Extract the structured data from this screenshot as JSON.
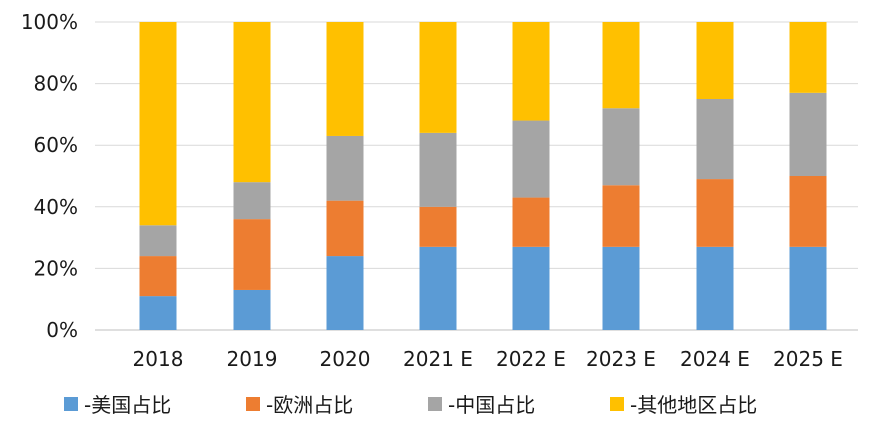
{
  "chart_data": {
    "type": "bar",
    "stacked": true,
    "categories": [
      "2018",
      "2019",
      "2020",
      "2021 E",
      "2022 E",
      "2023 E",
      "2024 E",
      "2025 E"
    ],
    "series": [
      {
        "name": "-美国占比",
        "color": "#5B9BD5",
        "values": [
          11,
          13,
          24,
          27,
          27,
          27,
          27,
          27
        ]
      },
      {
        "name": "-欧洲占比",
        "color": "#ED7D31",
        "values": [
          13,
          23,
          18,
          13,
          16,
          20,
          22,
          23
        ]
      },
      {
        "name": "-中国占比",
        "color": "#A5A5A5",
        "values": [
          10,
          12,
          21,
          24,
          25,
          25,
          26,
          27
        ]
      },
      {
        "name": "-其他地区占比",
        "color": "#FFC000",
        "values": [
          66,
          52,
          37,
          36,
          32,
          28,
          25,
          23
        ]
      }
    ],
    "y_ticks": [
      "0%",
      "20%",
      "40%",
      "60%",
      "80%",
      "100%"
    ],
    "ylim": [
      0,
      100
    ],
    "grid": true,
    "legend_position": "bottom"
  }
}
